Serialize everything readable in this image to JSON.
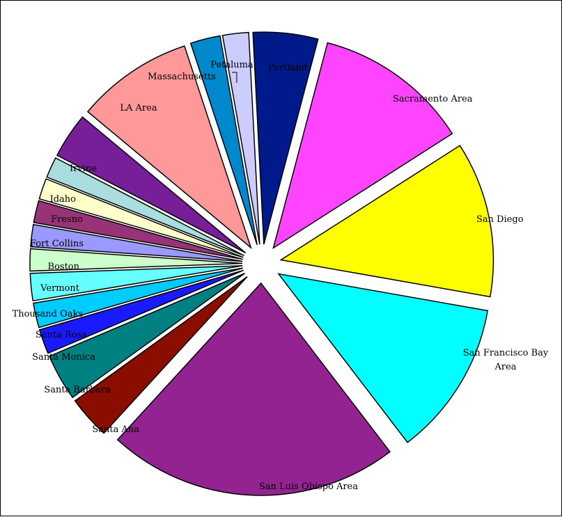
{
  "chart_data": {
    "type": "pie",
    "title": "",
    "exploded": true,
    "slice_order": "counterclockwise from the right",
    "slices": [
      {
        "label": "San Diego",
        "value": 12.0,
        "color": "#ffff00"
      },
      {
        "label": "Sacramento Area",
        "value": 12.0,
        "color": "#ff44ff"
      },
      {
        "label": "Portland",
        "value": 5.0,
        "color": "#001a8c"
      },
      {
        "label": "Petaluma",
        "value": 2.0,
        "color": "#ccccff"
      },
      {
        "label": "Massachusetts",
        "value": 2.3,
        "color": "#0088cc"
      },
      {
        "label": "LA Area",
        "value": 9.0,
        "color": "#ff9999"
      },
      {
        "label": "Irvine",
        "value": 3.5,
        "color": "#771f99"
      },
      {
        "label": "Idaho",
        "value": 1.6,
        "color": "#aadddd"
      },
      {
        "label": "Fresno",
        "value": 1.6,
        "color": "#ffffcc"
      },
      {
        "label": "Fort Collins",
        "value": 1.7,
        "color": "#993377"
      },
      {
        "label": "Boston",
        "value": 1.7,
        "color": "#9999ff"
      },
      {
        "label": "Vermont",
        "value": 1.7,
        "color": "#ccffcc"
      },
      {
        "label": "Thousand Oaks",
        "value": 2.1,
        "color": "#66ffff"
      },
      {
        "label": "Santa Rosa",
        "value": 1.9,
        "color": "#00ccff"
      },
      {
        "label": "Santa Monica",
        "value": 1.9,
        "color": "#1a1aff"
      },
      {
        "label": "Santa Barbara",
        "value": 3.6,
        "color": "#008080"
      },
      {
        "label": "Santa Ana",
        "value": 3.3,
        "color": "#8b0d00"
      },
      {
        "label": "San Luis Obispo Area",
        "value": 22.5,
        "color": "#932391"
      },
      {
        "label": "San Francisco Bay Area",
        "value": 12.0,
        "color": "#00ffff"
      }
    ]
  }
}
